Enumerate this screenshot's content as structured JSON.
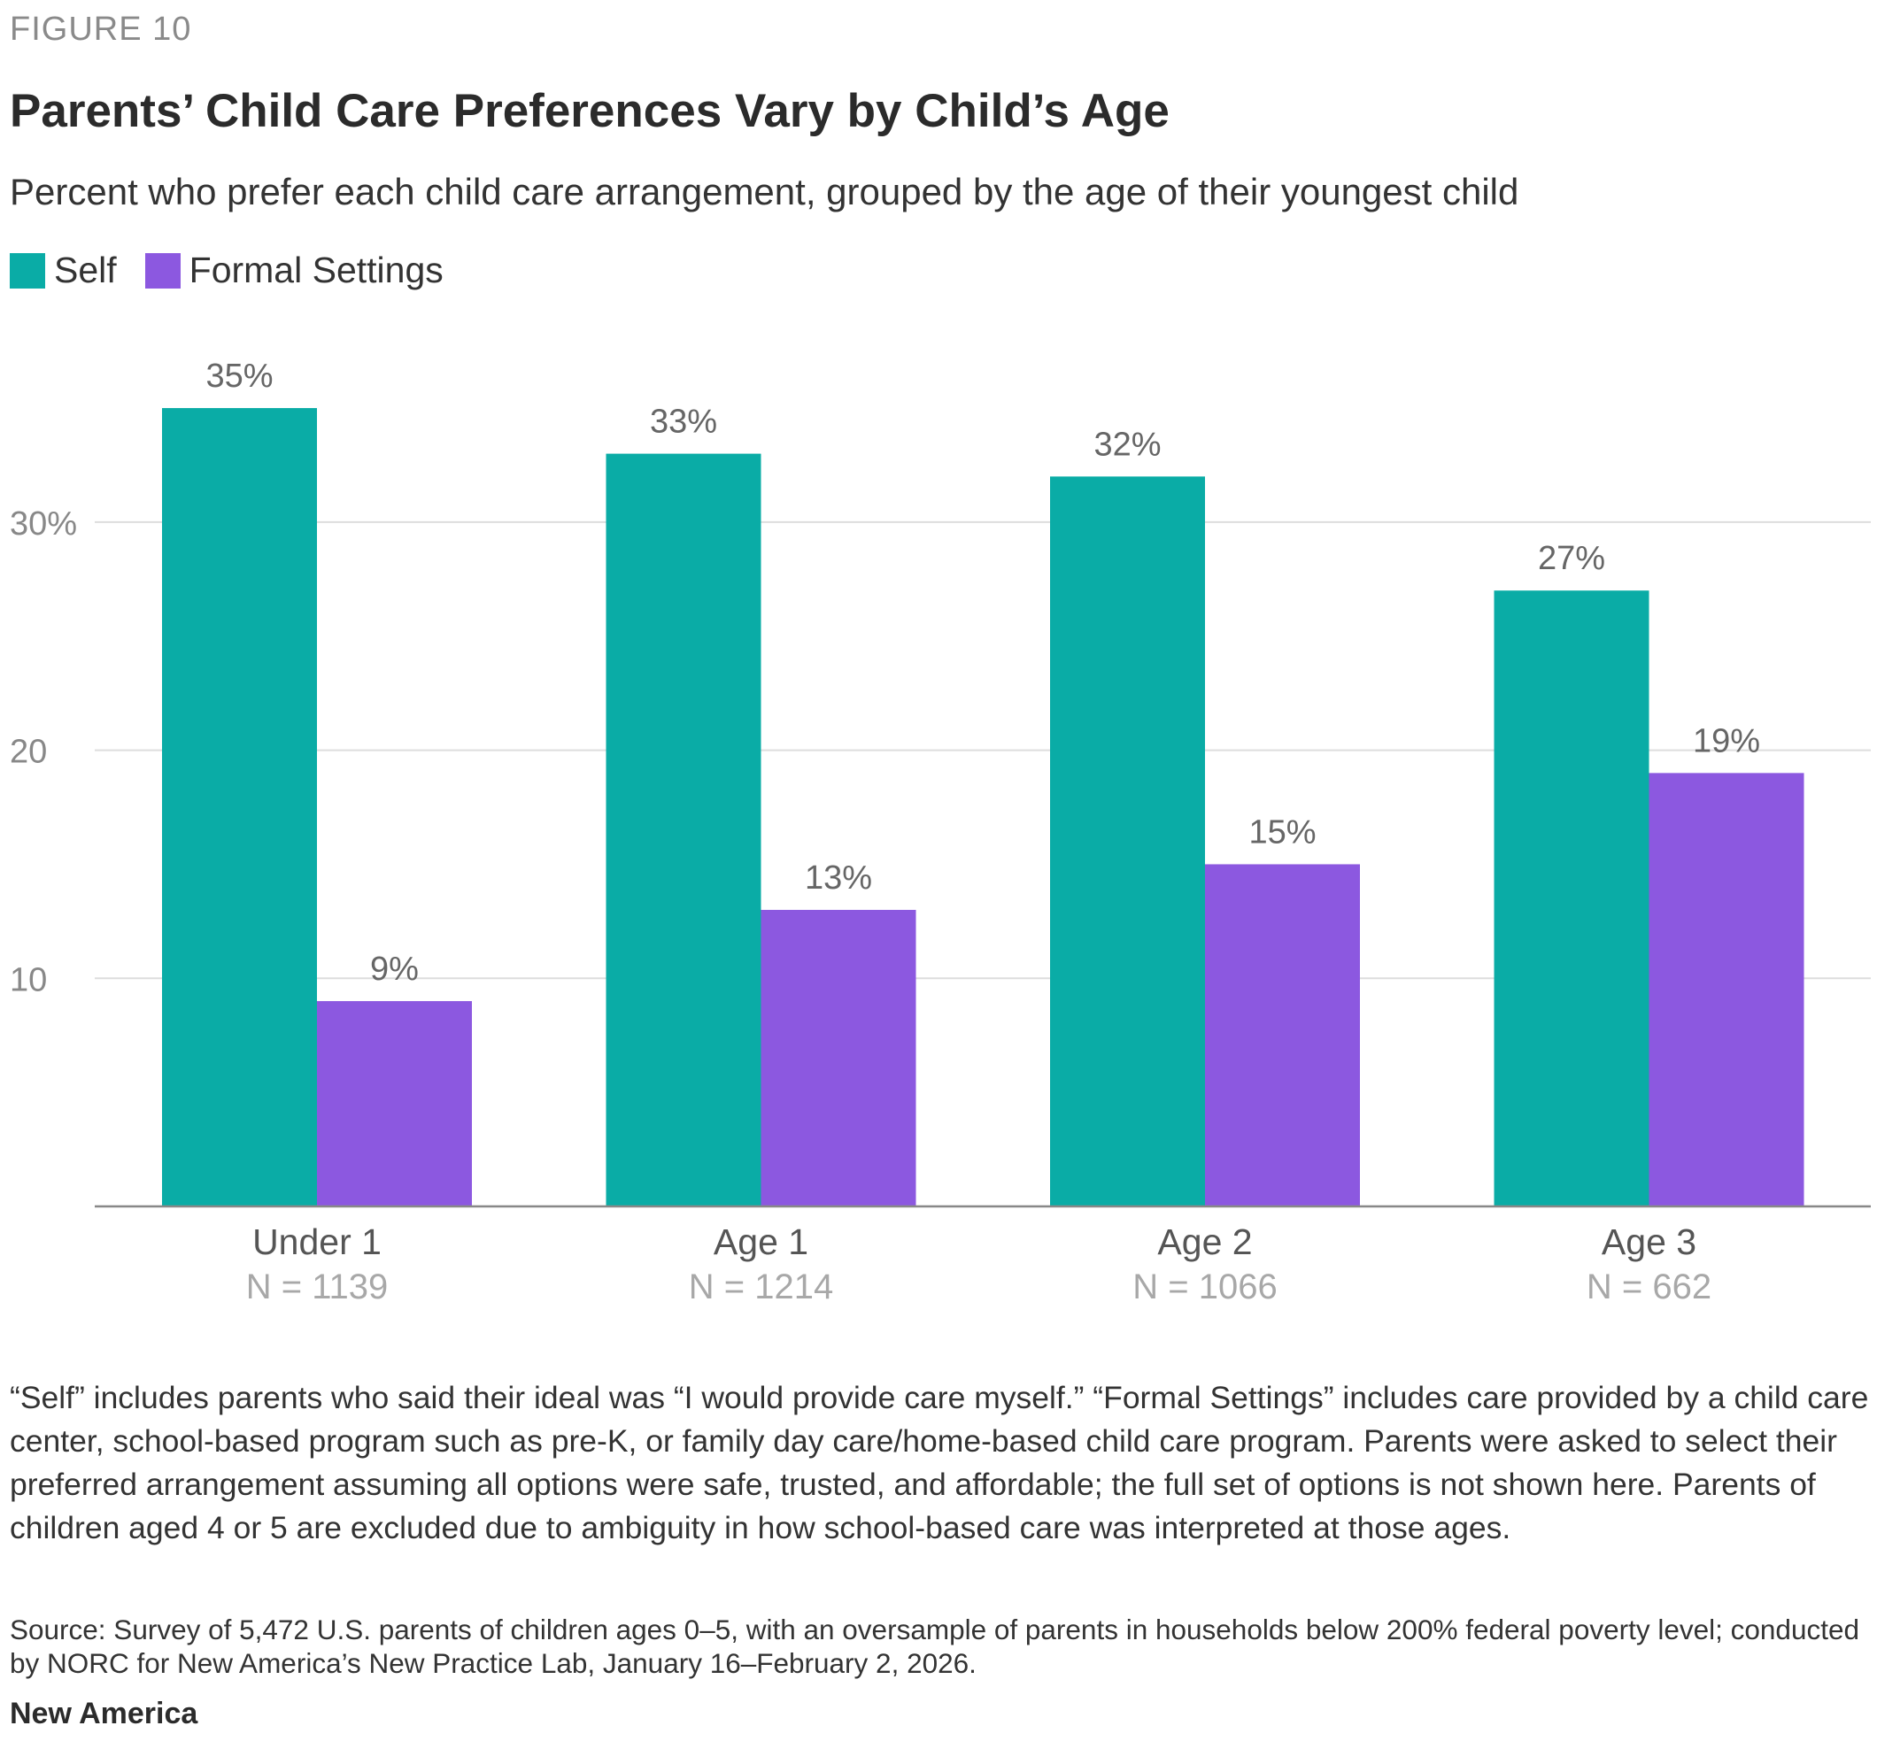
{
  "figure_label": "FIGURE 10",
  "note": "“Self” includes parents who said their ideal was “I would provide care myself.” “Formal Settings” includes care provided by a child care center, school-based program such as pre-K, or family day care/home-based child care program. Parents were asked to select their preferred arrangement assuming all options were safe, trusted, and affordable; the full set of options is not shown here. Parents of children aged 4 or 5 are excluded due to ambiguity in how school-based care was interpreted at those ages.",
  "source": "Source: Survey of 5,472 U.S. parents of children ages 0–5, with an oversample of parents in households below 200% federal poverty level; conducted by NORC for New America’s New Practice Lab, January 16–February 2, 2026.",
  "brand": "New America",
  "colors": {
    "self": "#0aaca6",
    "formal": "#8c58e0",
    "grid": "#dddddd",
    "axis": "#888888",
    "tick": "#888888",
    "label": "#666666",
    "n_label": "#a8a8a8"
  },
  "chart_data": {
    "type": "bar",
    "title": "Parents’ Child Care Preferences Vary by Child’s Age",
    "subtitle": "Percent who prefer each child care arrangement, grouped by the age of their youngest child",
    "categories": [
      "Under 1",
      "Age 1",
      "Age 2",
      "Age 3"
    ],
    "category_sublabels": [
      "N = 1139",
      "N = 1214",
      "N = 1066",
      "N = 662"
    ],
    "series": [
      {
        "name": "Self",
        "values": [
          35,
          33,
          32,
          27
        ],
        "labels": [
          "35%",
          "33%",
          "32%",
          "27%"
        ]
      },
      {
        "name": "Formal Settings",
        "values": [
          9,
          13,
          15,
          19
        ],
        "labels": [
          "9%",
          "13%",
          "15%",
          "19%"
        ]
      }
    ],
    "y_ticks": [
      10,
      20,
      30
    ],
    "y_tick_labels": [
      "10",
      "20",
      "30%"
    ],
    "ylim": [
      0,
      35
    ],
    "grid": true,
    "legend_position": "top-left"
  }
}
